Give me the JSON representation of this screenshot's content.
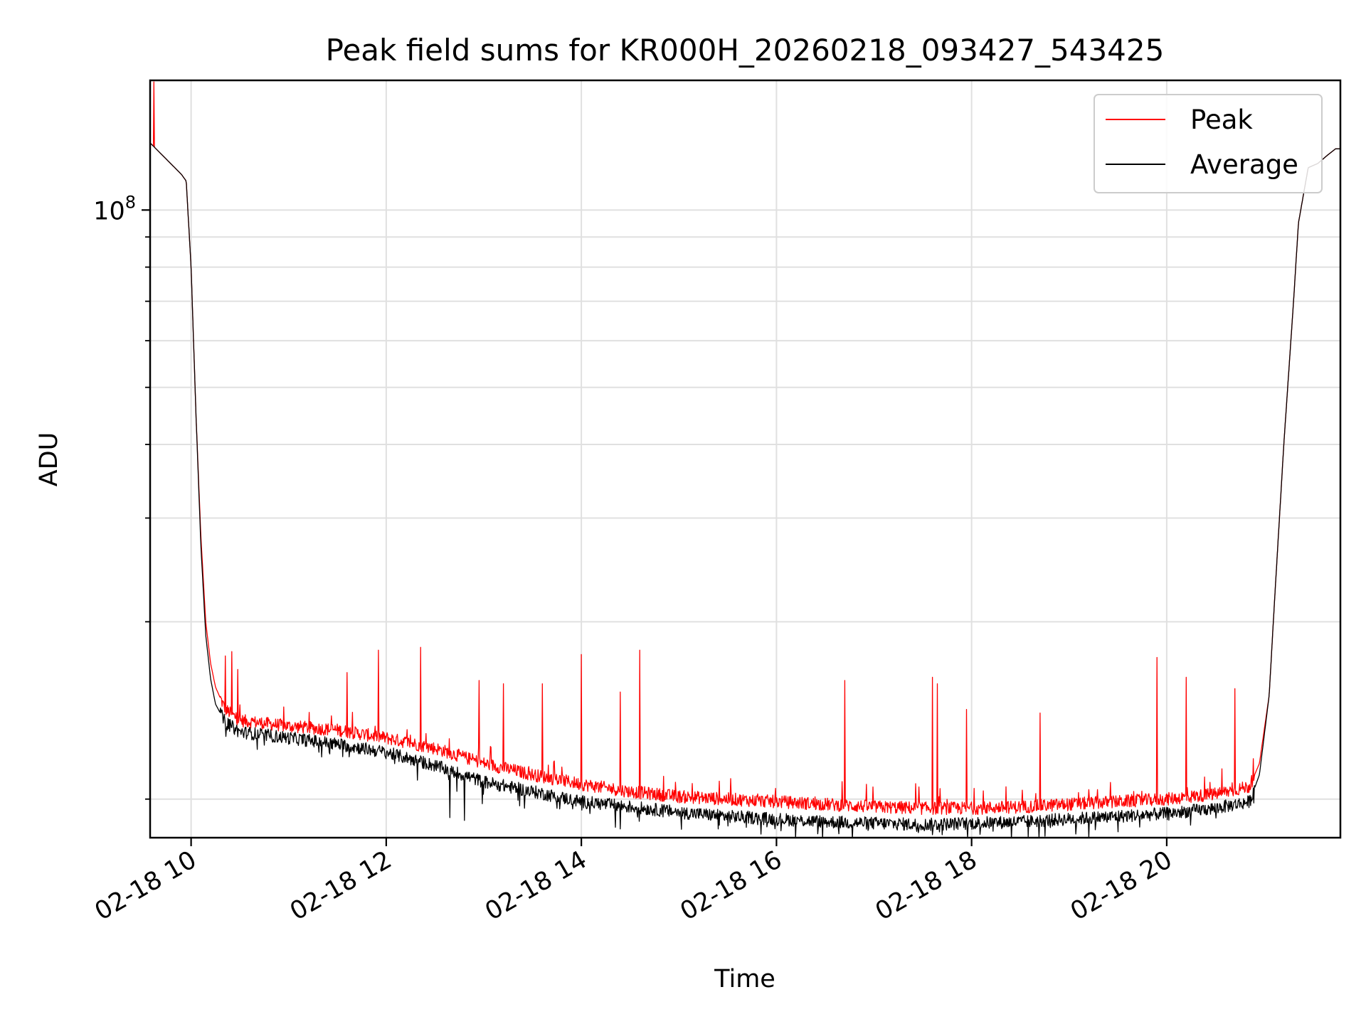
{
  "chart_data": {
    "type": "line",
    "title": "Peak field sums for KR000H_20260218_093427_543425",
    "xlabel": "Time",
    "ylabel": "ADU",
    "y_scale": "log",
    "grid": true,
    "legend_location": "upper right",
    "xlim": [
      9.58,
      21.78
    ],
    "ylim": [
      8600000.0,
      166000000.0
    ],
    "x_ticks": [
      10,
      12,
      14,
      16,
      18,
      20
    ],
    "x_tick_labels": [
      "02-18 10",
      "02-18 12",
      "02-18 14",
      "02-18 16",
      "02-18 18",
      "02-18 20"
    ],
    "y_major_tick": {
      "value": 100000000,
      "base": "10",
      "exponent": "8"
    },
    "y_minor_ticks": [
      10000000,
      20000000,
      30000000,
      40000000,
      50000000,
      60000000,
      70000000,
      80000000,
      90000000
    ],
    "series": [
      {
        "name": "Peak",
        "color": "#ff0000",
        "x": [
          9.58,
          9.9,
          9.95,
          10.0,
          10.05,
          10.1,
          10.15,
          10.2,
          10.25,
          10.35,
          10.5,
          11.0,
          11.5,
          12.0,
          12.5,
          13.0,
          13.5,
          14.0,
          14.5,
          15.0,
          15.5,
          16.0,
          16.5,
          17.0,
          17.5,
          18.0,
          18.5,
          19.0,
          19.5,
          20.0,
          20.5,
          20.85,
          20.95,
          21.05,
          21.1,
          21.2,
          21.3,
          21.35,
          21.45,
          21.55,
          21.65,
          21.73,
          21.78
        ],
        "y": [
          130000000,
          115000000,
          112000000,
          80000000,
          45000000,
          28000000,
          20000000,
          17000000,
          15500000,
          14200000,
          13600000,
          13300000,
          13100000,
          12700000,
          12200000,
          11500000,
          11000000,
          10600000,
          10300000,
          10100000,
          10000000,
          9900000,
          9800000,
          9700000,
          9650000,
          9650000,
          9700000,
          9800000,
          9900000,
          10000000,
          10200000,
          10500000,
          11500000,
          15000000,
          21000000,
          40000000,
          70000000,
          95000000,
          118000000,
          120000000,
          124000000,
          127000000,
          127000000
        ],
        "spikes": [
          [
            9.62,
            165000000
          ],
          [
            10.35,
            17500000
          ],
          [
            10.42,
            17800000
          ],
          [
            10.48,
            16600000
          ],
          [
            11.6,
            16400000
          ],
          [
            11.92,
            17900000
          ],
          [
            12.35,
            18100000
          ],
          [
            12.95,
            15900000
          ],
          [
            13.2,
            15700000
          ],
          [
            13.6,
            15700000
          ],
          [
            14.0,
            17600000
          ],
          [
            14.4,
            15200000
          ],
          [
            14.6,
            17900000
          ],
          [
            16.7,
            15900000
          ],
          [
            17.6,
            16100000
          ],
          [
            17.65,
            15700000
          ],
          [
            17.95,
            14200000
          ],
          [
            18.7,
            14000000
          ],
          [
            19.9,
            17400000
          ],
          [
            20.2,
            16100000
          ],
          [
            20.7,
            15400000
          ]
        ]
      },
      {
        "name": "Average",
        "color": "#000000",
        "x": [
          9.58,
          9.9,
          9.95,
          10.0,
          10.05,
          10.1,
          10.15,
          10.2,
          10.25,
          10.35,
          10.5,
          11.0,
          11.5,
          12.0,
          12.5,
          13.0,
          13.5,
          14.0,
          14.5,
          15.0,
          15.5,
          16.0,
          16.5,
          17.0,
          17.5,
          18.0,
          18.5,
          19.0,
          19.5,
          20.0,
          20.5,
          20.85,
          20.95,
          21.05,
          21.1,
          21.2,
          21.3,
          21.35,
          21.45,
          21.55,
          21.65,
          21.73,
          21.78
        ],
        "y": [
          130000000,
          115000000,
          112000000,
          80000000,
          45000000,
          27000000,
          19000000,
          16000000,
          14500000,
          13500000,
          13000000,
          12700000,
          12400000,
          12000000,
          11400000,
          10700000,
          10300000,
          9900000,
          9700000,
          9500000,
          9350000,
          9250000,
          9150000,
          9100000,
          9050000,
          9100000,
          9150000,
          9250000,
          9350000,
          9450000,
          9650000,
          9900000,
          11000000,
          15000000,
          21000000,
          40000000,
          70000000,
          95000000,
          118000000,
          120000000,
          124000000,
          127000000,
          127000000
        ],
        "dips": [
          [
            12.65,
            9300000
          ],
          [
            12.8,
            9200000
          ],
          [
            14.4,
            8900000
          ],
          [
            15.4,
            8900000
          ],
          [
            15.5,
            9000000
          ],
          [
            17.6,
            8700000
          ],
          [
            17.7,
            8700000
          ],
          [
            18.75,
            8650000
          ],
          [
            19.2,
            8600000
          ],
          [
            19.5,
            8800000
          ]
        ]
      }
    ]
  }
}
